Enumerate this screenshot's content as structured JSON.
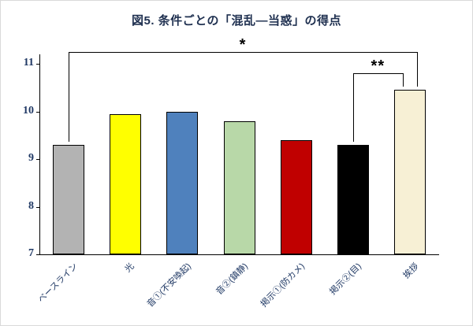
{
  "chart_data": {
    "type": "bar",
    "title": "図5. 条件ごとの「混乱―当惑」の得点",
    "categories": [
      "ベースライン",
      "光",
      "音①(不安喚起)",
      "音②(鎮静)",
      "掲示①(防カメ)",
      "掲示②(目)",
      "挨拶"
    ],
    "values": [
      9.3,
      9.95,
      10.0,
      9.8,
      9.4,
      9.3,
      10.45
    ],
    "bar_colors": [
      "#b3b3b3",
      "#ffff00",
      "#4f81bd",
      "#b8d8a8",
      "#c00000",
      "#000000",
      "#f7f0d5"
    ],
    "bar_border_color": "#000000",
    "xlabel": "",
    "ylabel": "",
    "ylim": [
      7,
      11
    ],
    "yticks": [
      7,
      8,
      9,
      10,
      11
    ],
    "grid": false,
    "legend": false,
    "annotations": [
      {
        "type": "significance-bracket",
        "from": 0,
        "to": 6,
        "label": "*",
        "level": 11.25
      },
      {
        "type": "significance-bracket",
        "from": 5,
        "to": 6,
        "label": "**",
        "level": 10.8
      }
    ]
  }
}
